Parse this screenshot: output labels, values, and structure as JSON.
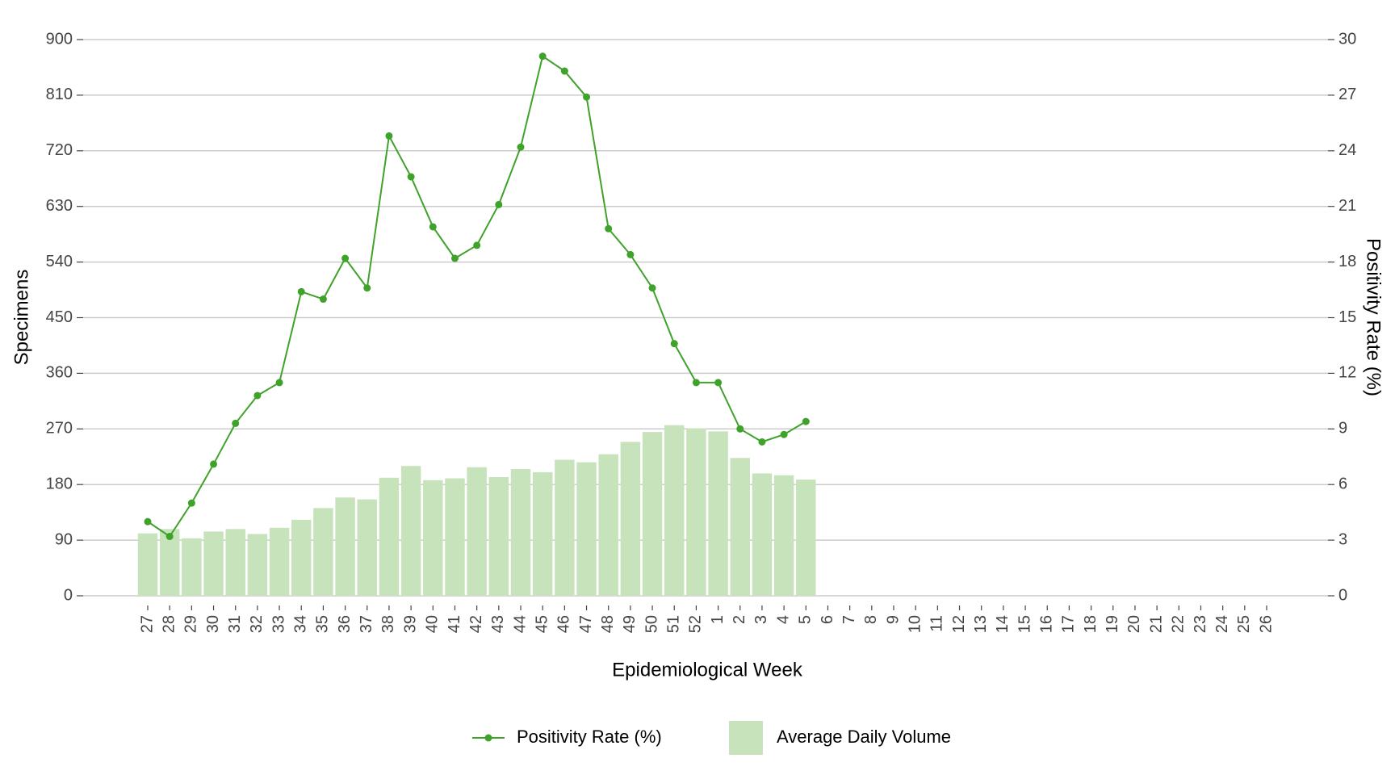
{
  "chart_data": {
    "type": "bar-line",
    "x_label": "Epidemiological Week",
    "y_label": "Specimens",
    "y2_label": "Positivity Rate (%)",
    "categories": [
      "27",
      "28",
      "29",
      "30",
      "31",
      "32",
      "33",
      "34",
      "35",
      "36",
      "37",
      "38",
      "39",
      "40",
      "41",
      "42",
      "43",
      "44",
      "45",
      "46",
      "47",
      "48",
      "49",
      "50",
      "51",
      "52",
      "1",
      "2",
      "3",
      "4",
      "5",
      "6",
      "7",
      "8",
      "9",
      "10",
      "11",
      "12",
      "13",
      "14",
      "15",
      "16",
      "17",
      "18",
      "19",
      "20",
      "21",
      "22",
      "23",
      "24",
      "25",
      "26"
    ],
    "series": [
      {
        "name": "Average Daily Volume",
        "type": "bar",
        "color": "#c7e3bb",
        "values": [
          101,
          108,
          93,
          104,
          108,
          100,
          110,
          123,
          142,
          159,
          156,
          191,
          210,
          187,
          190,
          208,
          192,
          205,
          200,
          220,
          216,
          229,
          249,
          265,
          276,
          271,
          266,
          223,
          198,
          195,
          188,
          null,
          null,
          null,
          null,
          null,
          null,
          null,
          null,
          null,
          null,
          null,
          null,
          null,
          null,
          null,
          null,
          null,
          null,
          null,
          null,
          null
        ]
      },
      {
        "name": "Positivity Rate (%)",
        "type": "line",
        "axis": "y2",
        "color": "#3fa22a",
        "values": [
          4.0,
          3.2,
          5.0,
          7.1,
          9.3,
          10.8,
          11.5,
          16.4,
          16.0,
          18.2,
          16.6,
          24.8,
          22.6,
          19.9,
          18.2,
          18.9,
          21.1,
          24.2,
          29.1,
          28.3,
          26.9,
          19.8,
          18.4,
          16.6,
          13.6,
          11.5,
          11.5,
          9.0,
          8.3,
          8.7,
          9.4,
          null,
          null,
          null,
          null,
          null,
          null,
          null,
          null,
          null,
          null,
          null,
          null,
          null,
          null,
          null,
          null,
          null,
          null,
          null,
          null,
          null
        ]
      }
    ],
    "ylim": [
      0,
      900
    ],
    "yticks": [
      0,
      90,
      180,
      270,
      360,
      450,
      540,
      630,
      720,
      810,
      900
    ],
    "y2lim": [
      0,
      30
    ],
    "y2ticks": [
      0,
      3,
      6,
      9,
      12,
      15,
      18,
      21,
      24,
      27,
      30
    ],
    "grid": true,
    "legend": "bottom"
  }
}
